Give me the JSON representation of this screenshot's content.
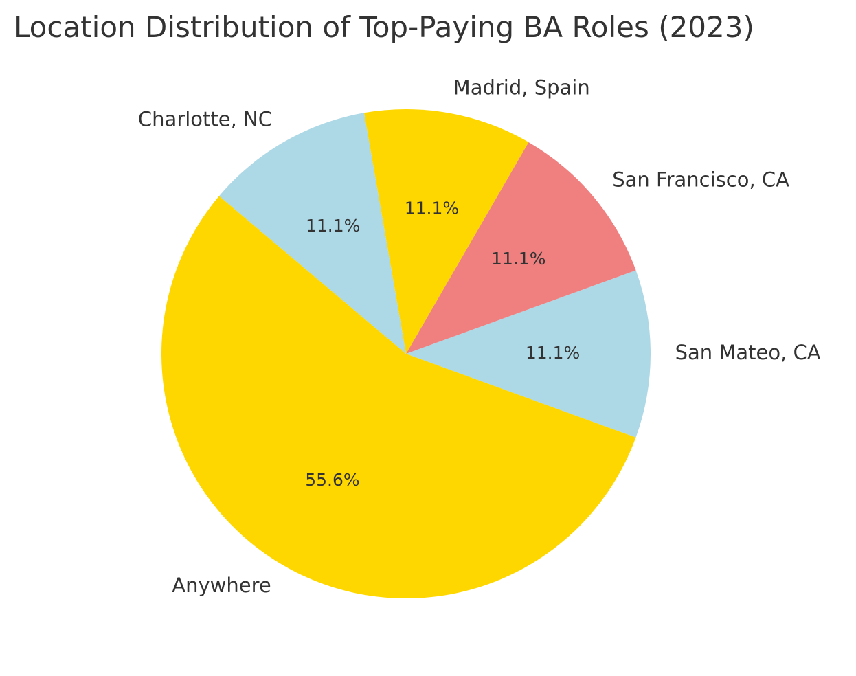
{
  "chart_data": {
    "type": "pie",
    "title": "Location Distribution of Top-Paying BA Roles (2023)",
    "labels": [
      "San Mateo, CA",
      "San Francisco, CA",
      "Madrid, Spain",
      "Charlotte, NC",
      "Anywhere"
    ],
    "values": [
      11.1,
      11.1,
      11.1,
      11.1,
      55.6
    ],
    "percent_labels": [
      "11.1%",
      "11.1%",
      "11.1%",
      "11.1%",
      "55.6%"
    ],
    "colors": [
      "#add8e6",
      "#f08080",
      "#ffd700",
      "#add8e6",
      "#ffd700"
    ],
    "start_angle_deg": -20,
    "direction": "counterclockwise",
    "legend": "none"
  }
}
